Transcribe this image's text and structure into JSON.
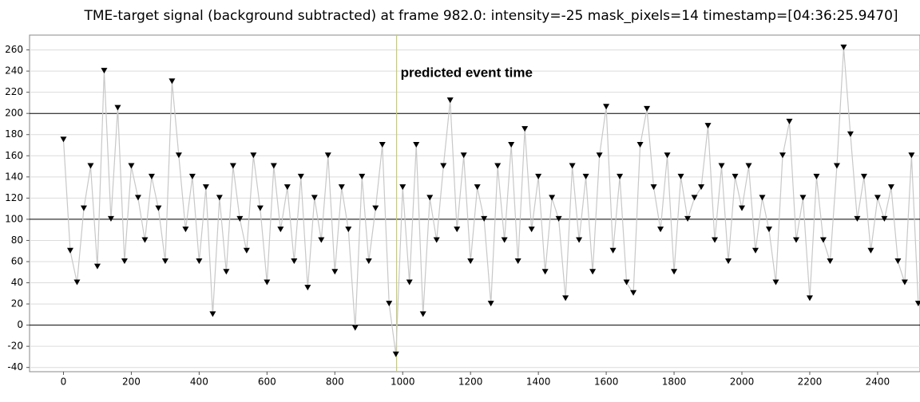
{
  "chart_data": {
    "type": "line",
    "title": "TME-target signal (background subtracted) at frame 982.0: intensity=-25 mask_pixels=14 timestamp=[04:36:25.9470]",
    "annotation": {
      "text": "predicted event time",
      "x": 982,
      "color": "#c8d060"
    },
    "x": [
      0,
      20,
      40,
      60,
      80,
      100,
      120,
      140,
      160,
      180,
      200,
      220,
      240,
      260,
      280,
      300,
      320,
      340,
      360,
      380,
      400,
      420,
      440,
      460,
      480,
      500,
      520,
      540,
      560,
      580,
      600,
      620,
      640,
      660,
      680,
      700,
      720,
      740,
      760,
      780,
      800,
      820,
      840,
      860,
      880,
      900,
      920,
      940,
      960,
      980,
      1000,
      1020,
      1040,
      1060,
      1080,
      1100,
      1120,
      1140,
      1160,
      1180,
      1200,
      1220,
      1240,
      1260,
      1280,
      1300,
      1320,
      1340,
      1360,
      1380,
      1400,
      1420,
      1440,
      1460,
      1480,
      1500,
      1520,
      1540,
      1560,
      1580,
      1600,
      1620,
      1640,
      1660,
      1680,
      1700,
      1720,
      1740,
      1760,
      1780,
      1800,
      1820,
      1840,
      1860,
      1880,
      1900,
      1920,
      1940,
      1960,
      1980,
      2000,
      2020,
      2040,
      2060,
      2080,
      2100,
      2120,
      2140,
      2160,
      2180,
      2200,
      2220,
      2240,
      2260,
      2280,
      2300,
      2320,
      2340,
      2360,
      2380,
      2400,
      2420,
      2440,
      2460,
      2480,
      2500,
      2520
    ],
    "series": [
      {
        "color": "#000000",
        "line_color": "#c8c8c8",
        "marker": "triangle-down",
        "values": [
          175,
          70,
          40,
          110,
          150,
          55,
          240,
          100,
          205,
          60,
          150,
          120,
          80,
          140,
          110,
          60,
          230,
          160,
          90,
          140,
          60,
          130,
          10,
          120,
          50,
          150,
          100,
          70,
          160,
          110,
          40,
          150,
          90,
          130,
          60,
          140,
          35,
          120,
          80,
          160,
          50,
          130,
          90,
          -3,
          140,
          60,
          110,
          170,
          20,
          -28,
          130,
          40,
          170,
          10,
          120,
          80,
          150,
          212,
          90,
          160,
          60,
          130,
          100,
          20,
          150,
          80,
          170,
          60,
          185,
          90,
          140,
          50,
          120,
          100,
          25,
          150,
          80,
          140,
          50,
          160,
          206,
          70,
          140,
          40,
          30,
          170,
          204,
          130,
          90,
          160,
          50,
          140,
          100,
          120,
          130,
          188,
          80,
          150,
          60,
          140,
          110,
          150,
          70,
          120,
          90,
          40,
          160,
          192,
          80,
          120,
          25,
          140,
          80,
          60,
          150,
          262,
          180,
          100,
          140,
          70,
          120,
          100,
          130,
          60,
          40,
          160,
          20
        ]
      }
    ],
    "xlim": [
      -100,
      2525
    ],
    "ylim": [
      -44,
      274
    ],
    "xticks": [
      0,
      200,
      400,
      600,
      800,
      1000,
      1200,
      1400,
      1600,
      1800,
      2000,
      2200,
      2400
    ],
    "yticks": [
      -40,
      -20,
      0,
      20,
      40,
      60,
      80,
      100,
      120,
      140,
      160,
      180,
      200,
      220,
      240,
      260
    ],
    "grid": true,
    "strong_grid_lines": [
      0,
      100,
      200
    ]
  }
}
